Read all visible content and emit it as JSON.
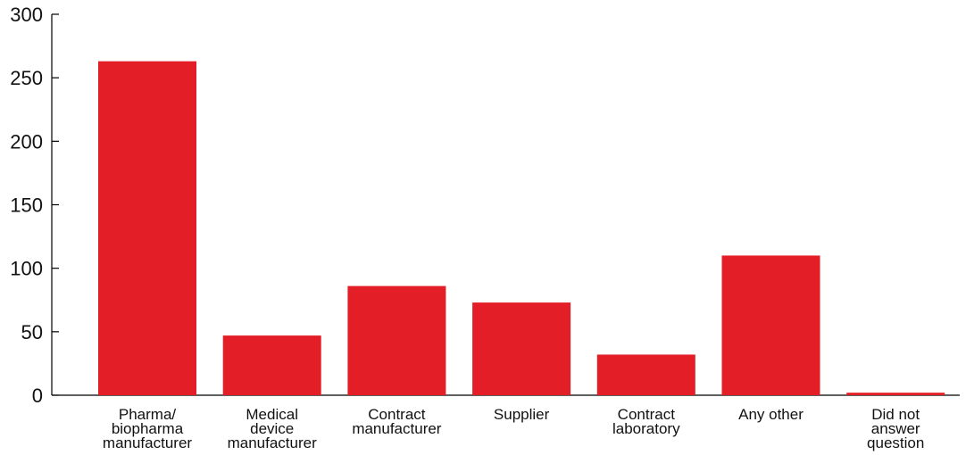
{
  "chart_data": {
    "type": "bar",
    "categories": [
      "Pharma/ biopharma manufacturer",
      "Medical device manufacturer",
      "Contract manufacturer",
      "Supplier",
      "Contract laboratory",
      "Any other",
      "Did not answer question"
    ],
    "category_lines": [
      [
        "Pharma/",
        "biopharma",
        "manufacturer"
      ],
      [
        "Medical",
        "device",
        "manufacturer"
      ],
      [
        "Contract",
        "manufacturer"
      ],
      [
        "Supplier"
      ],
      [
        "Contract",
        "laboratory"
      ],
      [
        "Any other"
      ],
      [
        "Did not",
        "answer",
        "question"
      ]
    ],
    "values": [
      263,
      47,
      86,
      73,
      32,
      110,
      2
    ],
    "title": "",
    "xlabel": "",
    "ylabel": "",
    "ylim": [
      0,
      300
    ],
    "yticks": [
      0,
      50,
      100,
      150,
      200,
      250,
      300
    ],
    "grid": false,
    "legend": "none",
    "bar_color": "#e31e26"
  }
}
